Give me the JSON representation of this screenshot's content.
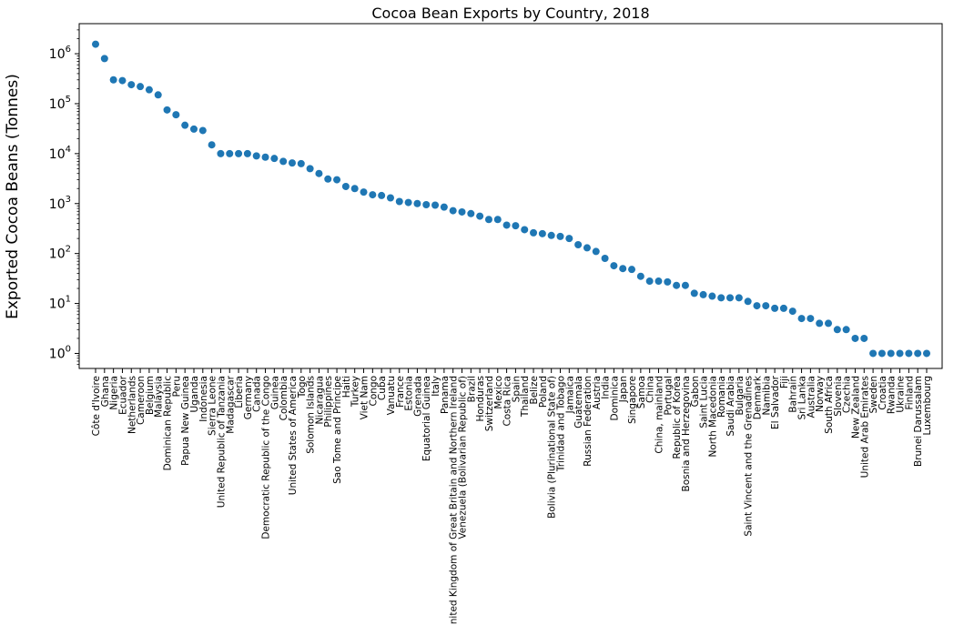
{
  "chart_data": {
    "type": "scatter",
    "title": "Cocoa Bean Exports by Country, 2018",
    "xlabel": "",
    "ylabel": "Exported Cocoa Beans (Tonnes)",
    "y_scale": "log",
    "ylim": [
      0.5,
      4000000
    ],
    "y_ticks": [
      1,
      10,
      100,
      1000,
      10000,
      100000,
      1000000
    ],
    "y_tick_labels": [
      {
        "base": "10",
        "exp": "0"
      },
      {
        "base": "10",
        "exp": "1"
      },
      {
        "base": "10",
        "exp": "2"
      },
      {
        "base": "10",
        "exp": "3"
      },
      {
        "base": "10",
        "exp": "4"
      },
      {
        "base": "10",
        "exp": "5"
      },
      {
        "base": "10",
        "exp": "6"
      }
    ],
    "grid": false,
    "legend": "none",
    "marker_color": "#1f77b4",
    "categories": [
      "Côte d'Ivoire",
      "Ghana",
      "Nigeria",
      "Ecuador",
      "Netherlands",
      "Cameroon",
      "Belgium",
      "Malaysia",
      "Dominican Republic",
      "Peru",
      "Papua New Guinea",
      "Uganda",
      "Indonesia",
      "Sierra Leone",
      "United Republic of Tanzania",
      "Madagascar",
      "Liberia",
      "Germany",
      "Canada",
      "Democratic Republic of the Congo",
      "Guinea",
      "Colombia",
      "United States of America",
      "Togo",
      "Solomon Islands",
      "Nicaragua",
      "Philippines",
      "Sao Tome and Principe",
      "Haiti",
      "Turkey",
      "Viet Nam",
      "Congo",
      "Cuba",
      "Vanuatu",
      "France",
      "Estonia",
      "Grenada",
      "Equatorial Guinea",
      "Italy",
      "Panama",
      "United Kingdom of Great Britain and Northern Ireland",
      "Venezuela (Bolivarian Republic of)",
      "Brazil",
      "Honduras",
      "Switzerland",
      "Mexico",
      "Costa Rica",
      "Spain",
      "Thailand",
      "Belize",
      "Poland",
      "Bolivia (Plurinational State of)",
      "Trinidad and Tobago",
      "Jamaica",
      "Guatemala",
      "Russian Federation",
      "Austria",
      "India",
      "Dominica",
      "Japan",
      "Singapore",
      "Samoa",
      "China",
      "China, mainland",
      "Portugal",
      "Republic of Korea",
      "Bosnia and Herzegovina",
      "Gabon",
      "Saint Lucia",
      "North Macedonia",
      "Romania",
      "Saudi Arabia",
      "Bulgaria",
      "Saint Vincent and the Grenadines",
      "Denmark",
      "Namibia",
      "El Salvador",
      "Fiji",
      "Bahrain",
      "Sri Lanka",
      "Australia",
      "Norway",
      "South Africa",
      "Slovenia",
      "Czechia",
      "New Zealand",
      "United Arab Emirates",
      "Sweden",
      "Croatia",
      "Rwanda",
      "Ukraine",
      "Finland",
      "Brunei Darussalam",
      "Luxembourg"
    ],
    "values": [
      1550000,
      800000,
      300000,
      290000,
      240000,
      220000,
      190000,
      150000,
      75000,
      60000,
      37000,
      31000,
      29000,
      15000,
      10000,
      10000,
      10000,
      10000,
      9000,
      8500,
      8000,
      7000,
      6500,
      6300,
      5000,
      4000,
      3100,
      3000,
      2200,
      2000,
      1700,
      1500,
      1450,
      1300,
      1100,
      1050,
      1000,
      950,
      930,
      850,
      720,
      680,
      630,
      560,
      480,
      480,
      370,
      360,
      300,
      260,
      250,
      230,
      220,
      200,
      150,
      130,
      110,
      80,
      57,
      50,
      48,
      35,
      28,
      28,
      27,
      23,
      23,
      16,
      15,
      14,
      13,
      13,
      13,
      11,
      9,
      9,
      8,
      8,
      7,
      5,
      5,
      4,
      4,
      3,
      3,
      2,
      2,
      1,
      1,
      1,
      1,
      1,
      1,
      1
    ]
  }
}
